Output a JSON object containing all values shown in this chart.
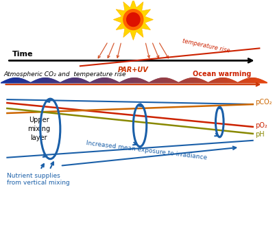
{
  "background_color": "#ffffff",
  "time_label": "Time",
  "par_uv_label": "PAR+UV",
  "atm_co2_label": "Atmospheric CO₂ and  temperature rise",
  "ocean_warming_label": "Ocean warming",
  "upper_mixing_label": "Upper\nmixing\nlayer",
  "pO2_label": "pO₂",
  "pCO2_label": "pCO₂",
  "pH_label": "pH",
  "irradiance_label": "Increased mean exposure to irradiance",
  "nutrient_label": "Nutrient supplies\nfrom vertical mixing",
  "blue_color": "#1a5fa8",
  "red_color": "#CC2200",
  "dark_orange": "#CC6600",
  "olive_color": "#888800",
  "sun_yellow": "#FFD700",
  "sun_orange": "#FF6600",
  "sun_red": "#DD1100"
}
